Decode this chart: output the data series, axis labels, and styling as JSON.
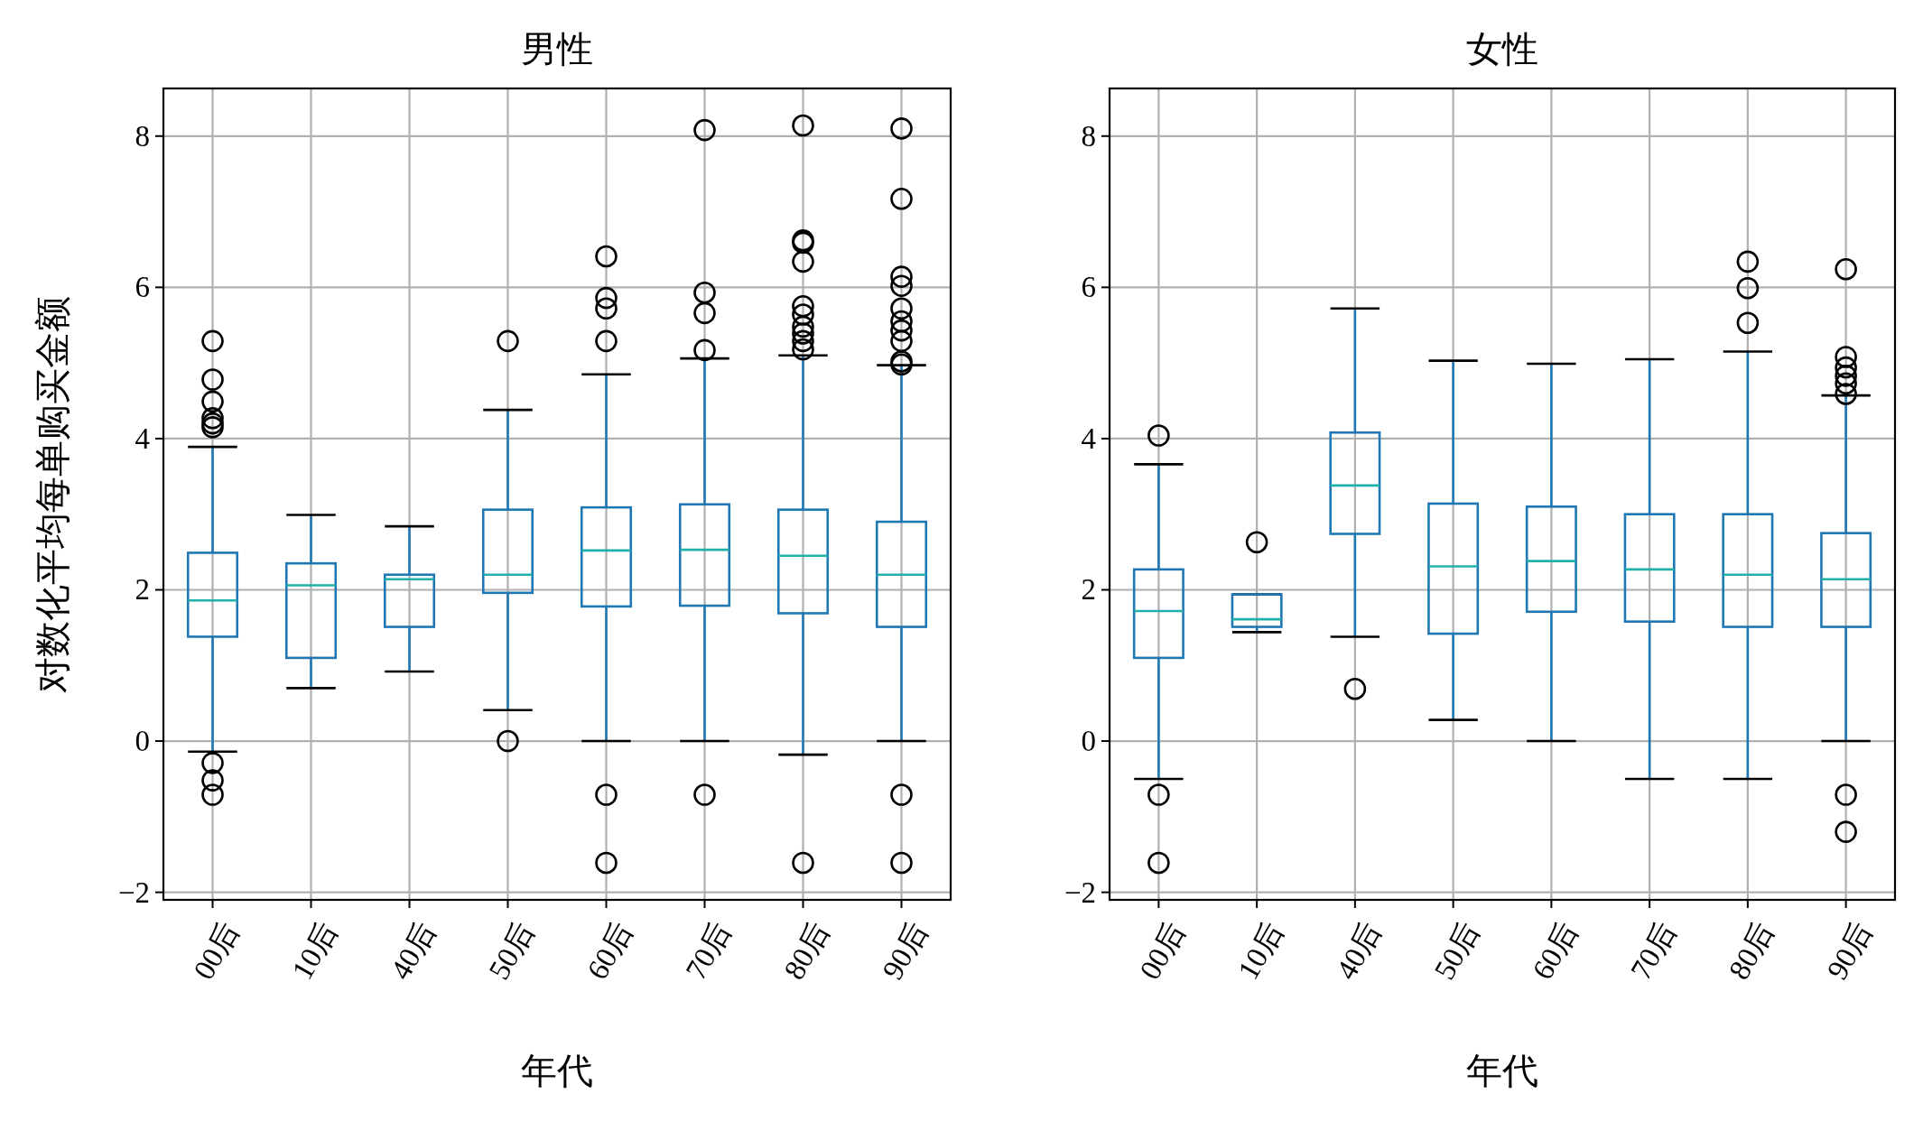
{
  "chart_data": [
    {
      "type": "box",
      "title": "男性",
      "xlabel": "年代",
      "ylabel": "对数化平均每单购买金额",
      "categories": [
        "00后",
        "10后",
        "40后",
        "50后",
        "60后",
        "70后",
        "80后",
        "90后"
      ],
      "ylim": [
        -2.1,
        8.63
      ],
      "yticks": [
        {
          "value": -2,
          "label": "−2"
        },
        0,
        2,
        4,
        6,
        8
      ],
      "grid": true,
      "series": [
        {
          "color": "#1f77b4",
          "boxes": [
            {
              "low": -0.14,
              "q1": 1.38,
              "median": 1.86,
              "q3": 2.49,
              "high": 3.89,
              "outliers": [
                5.29,
                4.78,
                4.49,
                4.27,
                4.2,
                4.15,
                -0.29,
                -0.52,
                -0.71
              ]
            },
            {
              "low": 0.7,
              "q1": 1.1,
              "median": 2.06,
              "q3": 2.35,
              "high": 2.99
            },
            {
              "low": 0.92,
              "q1": 1.51,
              "median": 2.14,
              "q3": 2.2,
              "high": 2.84
            },
            {
              "low": 0.41,
              "q1": 1.96,
              "median": 2.2,
              "q3": 3.06,
              "high": 4.38,
              "outliers": [
                5.29,
                0
              ]
            },
            {
              "low": 0,
              "q1": 1.78,
              "median": 2.52,
              "q3": 3.09,
              "high": 4.85,
              "outliers": [
                6.41,
                5.86,
                5.72,
                5.29,
                -0.71,
                -1.61
              ]
            },
            {
              "low": 0,
              "q1": 1.79,
              "median": 2.53,
              "q3": 3.13,
              "high": 5.06,
              "outliers": [
                8.08,
                5.93,
                5.66,
                5.17,
                -0.71
              ]
            },
            {
              "low": -0.18,
              "q1": 1.69,
              "median": 2.45,
              "q3": 3.06,
              "high": 5.1,
              "outliers": [
                8.14,
                6.62,
                6.59,
                6.34,
                5.75,
                5.64,
                5.48,
                5.39,
                5.29,
                5.18,
                -1.61
              ]
            },
            {
              "low": 0,
              "q1": 1.51,
              "median": 2.2,
              "q3": 2.9,
              "high": 4.97,
              "outliers": [
                8.1,
                7.17,
                6.14,
                6.02,
                5.72,
                5.55,
                5.43,
                5.29,
                5.02,
                4.98,
                -0.71,
                -1.61
              ]
            }
          ]
        }
      ]
    },
    {
      "type": "box",
      "title": "女性",
      "xlabel": "年代",
      "categories": [
        "00后",
        "10后",
        "40后",
        "50后",
        "60后",
        "70后",
        "80后",
        "90后"
      ],
      "ylim": [
        -2.1,
        8.63
      ],
      "yticks": [
        {
          "value": -2,
          "label": "−2"
        },
        0,
        2,
        4,
        6,
        8
      ],
      "grid": true,
      "series": [
        {
          "color": "#1f77b4",
          "boxes": [
            {
              "low": -0.5,
              "q1": 1.1,
              "median": 1.72,
              "q3": 2.27,
              "high": 3.66,
              "outliers": [
                4.04,
                -0.71,
                -1.61
              ]
            },
            {
              "low": 1.44,
              "q1": 1.51,
              "median": 1.61,
              "q3": 1.94,
              "high": 1.94,
              "outliers": [
                2.63
              ]
            },
            {
              "low": 1.38,
              "q1": 2.74,
              "median": 3.38,
              "q3": 4.08,
              "high": 5.72,
              "outliers": [
                0.69
              ]
            },
            {
              "low": 0.28,
              "q1": 1.42,
              "median": 2.31,
              "q3": 3.14,
              "high": 5.03
            },
            {
              "low": 0,
              "q1": 1.71,
              "median": 2.38,
              "q3": 3.1,
              "high": 4.99
            },
            {
              "low": -0.5,
              "q1": 1.58,
              "median": 2.27,
              "q3": 3.0,
              "high": 5.05
            },
            {
              "low": -0.5,
              "q1": 1.51,
              "median": 2.2,
              "q3": 3.0,
              "high": 5.15,
              "outliers": [
                6.34,
                5.99,
                5.53
              ]
            },
            {
              "low": 0,
              "q1": 1.51,
              "median": 2.14,
              "q3": 2.75,
              "high": 4.57,
              "outliers": [
                6.24,
                5.08,
                4.94,
                4.83,
                4.73,
                4.59,
                -0.71,
                -1.2
              ]
            }
          ]
        }
      ]
    }
  ]
}
